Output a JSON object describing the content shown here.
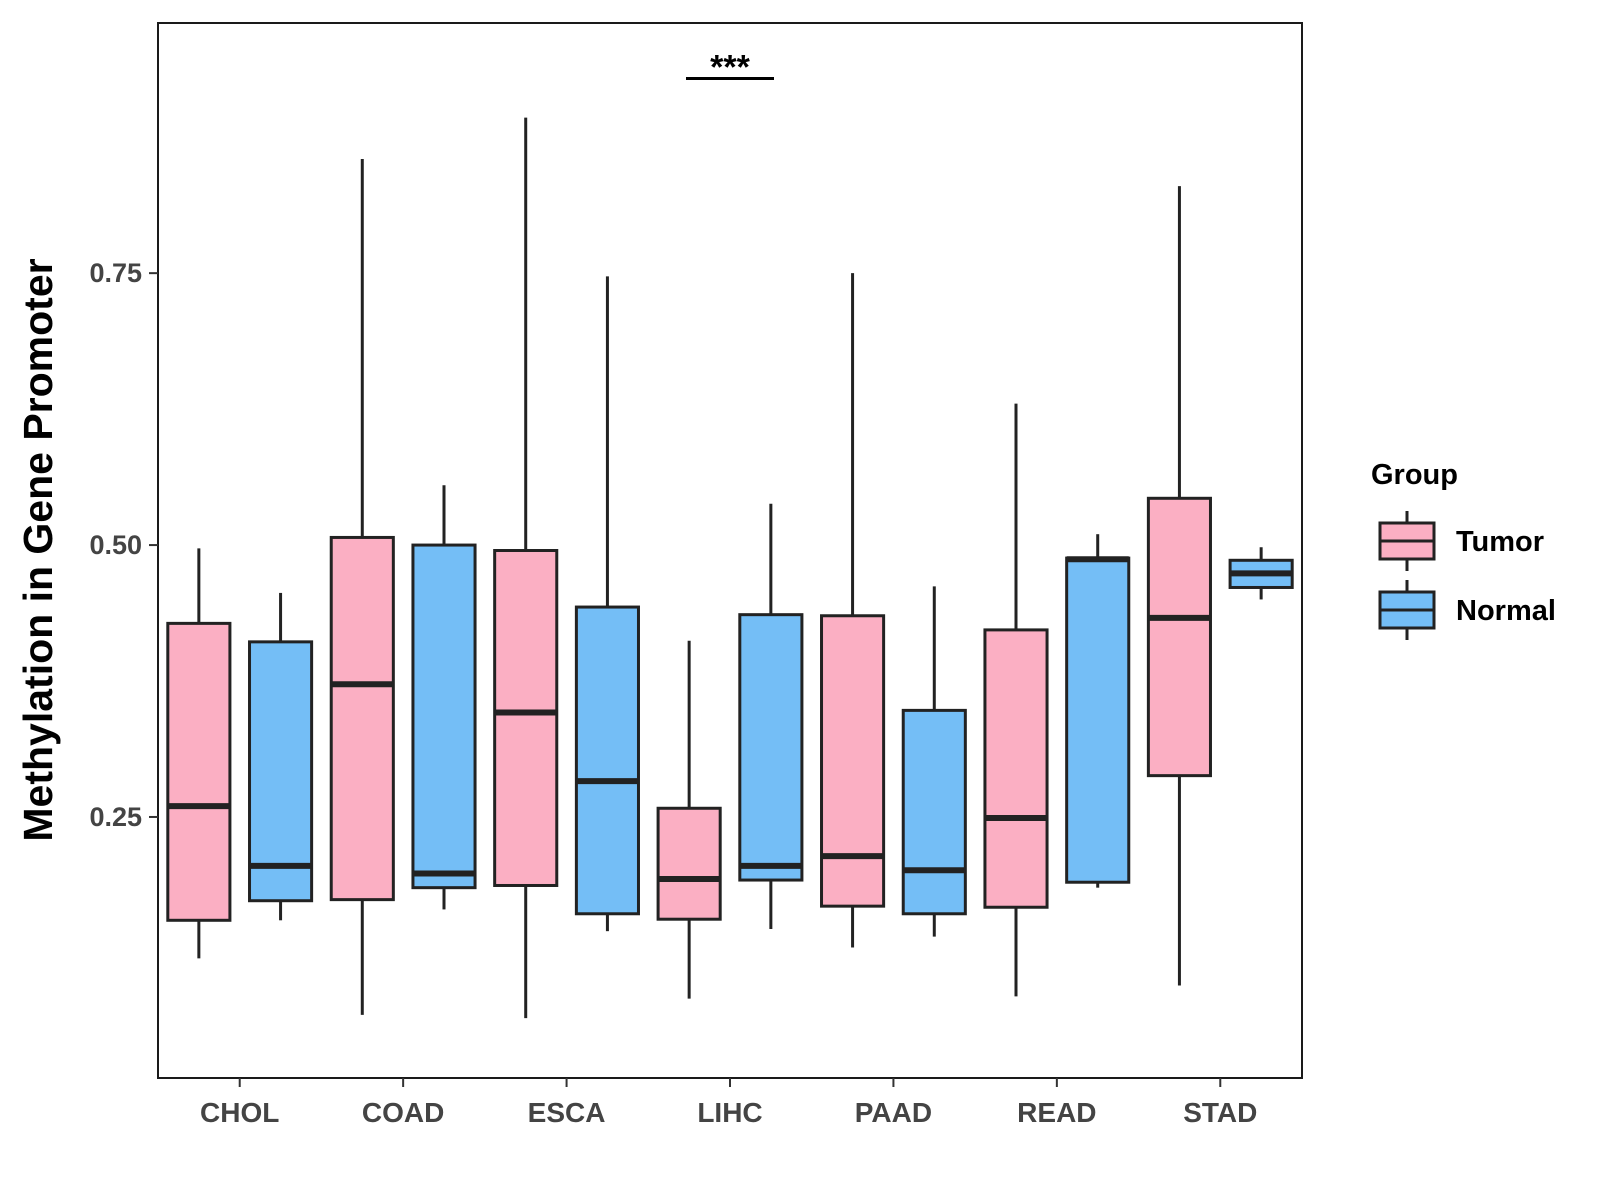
{
  "chart_data": {
    "type": "boxplot",
    "title": "",
    "xlabel": "",
    "ylabel": "Methylation in Gene Promoter",
    "ylim": [
      0.01,
      0.98
    ],
    "yticks": [
      0.25,
      0.5,
      0.75
    ],
    "ytick_labels": [
      "0.25",
      "0.50",
      "0.75"
    ],
    "categories": [
      "CHOL",
      "COAD",
      "ESCA",
      "LIHC",
      "PAAD",
      "READ",
      "STAD"
    ],
    "legend": {
      "title": "Group",
      "position": "right",
      "entries": [
        {
          "name": "Tumor",
          "color": "#FBAFC3"
        },
        {
          "name": "Normal",
          "color": "#74BEF6"
        }
      ]
    },
    "series": [
      {
        "name": "Tumor",
        "color": "#FBAFC3",
        "boxes": [
          {
            "category": "CHOL",
            "min": 0.12,
            "q1": 0.155,
            "median": 0.26,
            "q3": 0.428,
            "max": 0.497
          },
          {
            "category": "COAD",
            "min": 0.068,
            "q1": 0.174,
            "median": 0.372,
            "q3": 0.507,
            "max": 0.855
          },
          {
            "category": "ESCA",
            "min": 0.065,
            "q1": 0.187,
            "median": 0.346,
            "q3": 0.495,
            "max": 0.893
          },
          {
            "category": "LIHC",
            "min": 0.083,
            "q1": 0.156,
            "median": 0.193,
            "q3": 0.258,
            "max": 0.412
          },
          {
            "category": "PAAD",
            "min": 0.13,
            "q1": 0.168,
            "median": 0.214,
            "q3": 0.435,
            "max": 0.75
          },
          {
            "category": "READ",
            "min": 0.085,
            "q1": 0.167,
            "median": 0.249,
            "q3": 0.422,
            "max": 0.63
          },
          {
            "category": "STAD",
            "min": 0.095,
            "q1": 0.288,
            "median": 0.433,
            "q3": 0.543,
            "max": 0.83
          }
        ]
      },
      {
        "name": "Normal",
        "color": "#74BEF6",
        "boxes": [
          {
            "category": "CHOL",
            "min": 0.155,
            "q1": 0.173,
            "median": 0.205,
            "q3": 0.411,
            "max": 0.456
          },
          {
            "category": "COAD",
            "min": 0.165,
            "q1": 0.185,
            "median": 0.198,
            "q3": 0.5,
            "max": 0.555
          },
          {
            "category": "ESCA",
            "min": 0.145,
            "q1": 0.161,
            "median": 0.283,
            "q3": 0.443,
            "max": 0.747
          },
          {
            "category": "LIHC",
            "min": 0.147,
            "q1": 0.192,
            "median": 0.205,
            "q3": 0.436,
            "max": 0.538
          },
          {
            "category": "PAAD",
            "min": 0.14,
            "q1": 0.161,
            "median": 0.201,
            "q3": 0.348,
            "max": 0.462
          },
          {
            "category": "READ",
            "min": 0.185,
            "q1": 0.19,
            "median": 0.487,
            "q3": 0.488,
            "max": 0.51
          },
          {
            "category": "STAD",
            "min": 0.45,
            "q1": 0.461,
            "median": 0.474,
            "q3": 0.486,
            "max": 0.498
          }
        ]
      }
    ],
    "annotations": [
      {
        "text": "***",
        "category": "LIHC",
        "y": 0.94
      }
    ]
  }
}
